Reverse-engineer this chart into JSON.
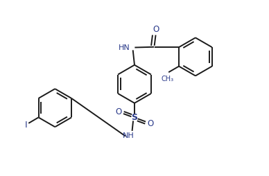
{
  "bg_color": "#ffffff",
  "line_color": "#1a1a1a",
  "ring_color": "#1a1a1a",
  "label_color_hn": "#2a3a8a",
  "label_color_o": "#2a3a8a",
  "lw": 1.4,
  "figsize": [
    3.88,
    2.54
  ],
  "dpi": 100,
  "xlim": [
    0,
    10
  ],
  "ylim": [
    0,
    6.5
  ]
}
